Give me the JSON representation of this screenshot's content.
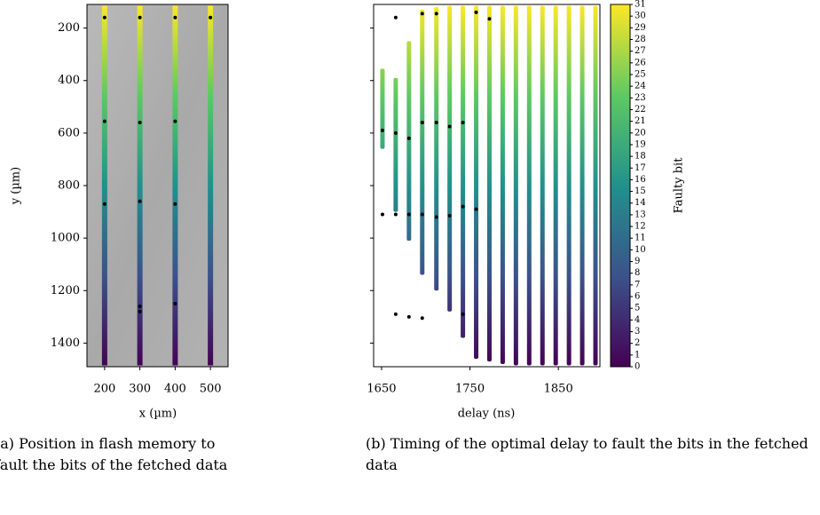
{
  "chart_data": [
    {
      "type": "strip",
      "xlabel": "x (µm)",
      "ylabel": "y (µm)",
      "caption": "(a) Position in flash memory to fault the bits of the fetched data",
      "xlim": [
        150,
        550
      ],
      "ylim": [
        1490,
        110
      ],
      "xticks": [
        200,
        300,
        400,
        500
      ],
      "yticks": [
        200,
        400,
        600,
        800,
        1000,
        1200,
        1400
      ],
      "x": [
        200,
        300,
        400,
        500
      ],
      "ymin": [
        115,
        115,
        115,
        115
      ],
      "ymax": [
        1485,
        1485,
        1485,
        1485
      ],
      "black_points": {
        "x": [
          200,
          300,
          400,
          500,
          200,
          300,
          400,
          200,
          300,
          400,
          300,
          300,
          400
        ],
        "y": [
          160,
          160,
          160,
          160,
          555,
          560,
          555,
          870,
          860,
          870,
          1260,
          1280,
          1250
        ]
      }
    },
    {
      "type": "columns",
      "xlabel": "delay (ns)",
      "caption": "(b) Timing of the optimal delay to fault the bits in the fetched data",
      "xlim": [
        1641,
        1897
      ],
      "ylim": [
        1490,
        110
      ],
      "xticks": [
        1650,
        1750,
        1850
      ],
      "yticks": [
        200,
        400,
        600,
        800,
        1000,
        1200,
        1400
      ],
      "x": [
        1651,
        1666,
        1681,
        1696,
        1712,
        1727,
        1742,
        1757,
        1772,
        1787,
        1802,
        1817,
        1832,
        1847,
        1862,
        1877,
        1892
      ],
      "ymin": [
        355,
        390,
        250,
        130,
        120,
        115,
        115,
        115,
        115,
        115,
        115,
        115,
        115,
        115,
        115,
        115,
        115
      ],
      "ymax": [
        660,
        900,
        1010,
        1140,
        1200,
        1280,
        1380,
        1460,
        1470,
        1480,
        1485,
        1485,
        1485,
        1485,
        1485,
        1485,
        1485
      ],
      "black_points": {
        "x": [
          1666,
          1696,
          1712,
          1757,
          1772,
          1651,
          1666,
          1681,
          1696,
          1712,
          1727,
          1742,
          1651,
          1666,
          1681,
          1696,
          1712,
          1727,
          1742,
          1757,
          1666,
          1681,
          1696,
          1742
        ],
        "y": [
          160,
          145,
          145,
          140,
          165,
          590,
          600,
          620,
          560,
          560,
          575,
          560,
          910,
          910,
          910,
          910,
          920,
          915,
          880,
          890,
          1290,
          1300,
          1305,
          1290
        ]
      },
      "colorbar": {
        "label": "Faulty bit",
        "clim": [
          0,
          31
        ],
        "ticks": [
          0,
          1,
          2,
          3,
          4,
          5,
          6,
          7,
          8,
          9,
          10,
          11,
          12,
          13,
          14,
          15,
          16,
          17,
          18,
          19,
          20,
          21,
          22,
          23,
          24,
          25,
          26,
          27,
          28,
          29,
          30,
          31
        ]
      }
    }
  ]
}
